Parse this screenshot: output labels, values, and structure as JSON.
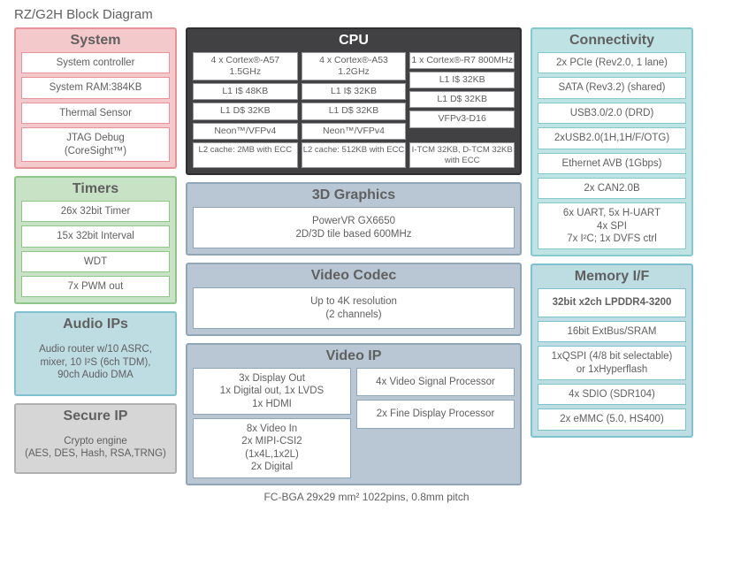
{
  "page": {
    "title": "RZ/G2H Block Diagram",
    "footer": "FC-BGA 29x29 mm² 1022pins, 0.8mm pitch"
  },
  "colors": {
    "pink": {
      "bg": "#f4c9cb",
      "border": "#e89399"
    },
    "green": {
      "bg": "#c7e2c4",
      "border": "#8fc68a"
    },
    "lblue": {
      "bg": "#bedde3",
      "border": "#7fc2cf"
    },
    "gray": {
      "bg": "#d6d6d6",
      "border": "#b0b0b0"
    },
    "dark": {
      "bg": "#414143",
      "border": "#2e2e30"
    },
    "slate": {
      "bg": "#b8c7d3",
      "border": "#8fa6b8"
    },
    "cyan": {
      "bg": "#bfe3e4",
      "border": "#84cacd"
    },
    "text": "#606060",
    "text_on_dark": "#ffffff"
  },
  "system": {
    "title": "System",
    "items": [
      "System controller",
      "System RAM:384KB",
      "Thermal Sensor",
      "JTAG Debug\n(CoreSight™)"
    ]
  },
  "timers": {
    "title": "Timers",
    "items": [
      "26x 32bit Timer",
      "15x 32bit Interval",
      "WDT",
      "7x PWM out"
    ]
  },
  "audio": {
    "title": "Audio IPs",
    "body": "Audio router w/10 ASRC,\nmixer, 10 I²S (6ch TDM),\n90ch Audio DMA"
  },
  "secure": {
    "title": "Secure IP",
    "body": "Crypto engine\n(AES, DES, Hash, RSA,TRNG)"
  },
  "cpu": {
    "title": "CPU",
    "cores": [
      {
        "head": "4 x Cortex®-A57 1.5GHz",
        "rows": [
          "L1 I$ 48KB",
          "L1 D$ 32KB",
          "Neon™/VFPv4"
        ]
      },
      {
        "head": "4 x Cortex®-A53 1.2GHz",
        "rows": [
          "L1 I$ 32KB",
          "L1 D$ 32KB",
          "Neon™/VFPv4"
        ]
      },
      {
        "head": "1 x Cortex®-R7 800MHz",
        "rows": [
          "L1 I$ 32KB",
          "L1 D$ 32KB",
          "VFPv3-D16"
        ]
      }
    ],
    "l2": [
      "L2 cache: 2MB with ECC",
      "L2 cache: 512KB with ECC",
      "I-TCM 32KB, D-TCM 32KB with ECC"
    ]
  },
  "gpu": {
    "title": "3D Graphics",
    "body": "PowerVR GX6650\n2D/3D tile based 600MHz"
  },
  "codec": {
    "title": "Video Codec",
    "body": "Up to 4K resolution\n(2 channels)"
  },
  "vip": {
    "title": "Video IP",
    "left": [
      "3x Display Out\n1x Digital out, 1x LVDS\n1x HDMI",
      "8x Video In\n2x MIPI-CSI2\n(1x4L,1x2L)\n2x Digital"
    ],
    "right": [
      "4x Video Signal Processor",
      "2x Fine Display Processor"
    ]
  },
  "conn": {
    "title": "Connectivity",
    "items": [
      "2x PCIe (Rev2.0, 1 lane)",
      "SATA (Rev3.2) (shared)",
      "USB3.0/2.0 (DRD)",
      "2xUSB2.0(1H,1H/F/OTG)",
      "Ethernet AVB (1Gbps)",
      "2x CAN2.0B",
      "6x UART, 5x H-UART\n4x SPI\n7x I²C; 1x DVFS ctrl"
    ]
  },
  "mem": {
    "title": "Memory I/F",
    "items": [
      "32bit x2ch LPDDR4-3200",
      "16bit ExtBus/SRAM",
      "1xQSPI (4/8 bit selectable)\nor 1xHyperflash",
      "4x SDIO (SDR104)",
      "2x eMMC (5.0, HS400)"
    ]
  }
}
